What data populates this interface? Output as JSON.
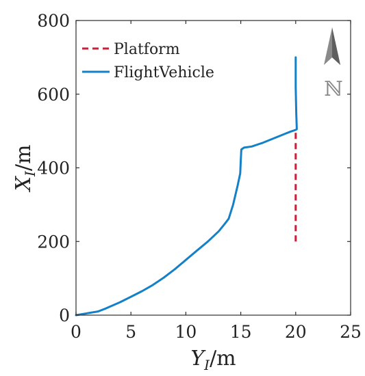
{
  "chart_data": {
    "type": "line",
    "xlabel": {
      "var": "Y",
      "sub": "I",
      "unit": "/m"
    },
    "ylabel": {
      "var": "X",
      "sub": "I",
      "unit": "/m"
    },
    "xlim": [
      0,
      25
    ],
    "ylim": [
      0,
      800
    ],
    "xticks": [
      0,
      5,
      10,
      15,
      20,
      25
    ],
    "yticks": [
      0,
      200,
      400,
      600,
      800
    ],
    "grid": false,
    "legend_position": "top-left",
    "north_symbol": "ℕ",
    "series": [
      {
        "name": "Platform",
        "color": "#c8203a",
        "dash": true,
        "x": [
          20,
          20
        ],
        "y": [
          200,
          505
        ]
      },
      {
        "name": "FlightVehicle",
        "color": "#1480c8",
        "dash": false,
        "x": [
          0,
          1,
          2,
          2.7,
          4,
          5,
          6,
          7,
          8,
          9,
          10,
          11,
          12,
          13,
          13.6,
          13.9,
          14.3,
          14.7,
          14.95,
          15.0,
          15.05,
          15.3,
          16,
          17,
          18,
          19,
          19.5,
          20,
          20.1,
          20.05,
          20.0,
          20.0
        ],
        "y": [
          0,
          5,
          10,
          18,
          35,
          50,
          65,
          82,
          102,
          125,
          150,
          175,
          200,
          228,
          250,
          262,
          300,
          350,
          385,
          420,
          450,
          455,
          458,
          468,
          480,
          492,
          498,
          503,
          505,
          550,
          620,
          700
        ]
      }
    ]
  }
}
